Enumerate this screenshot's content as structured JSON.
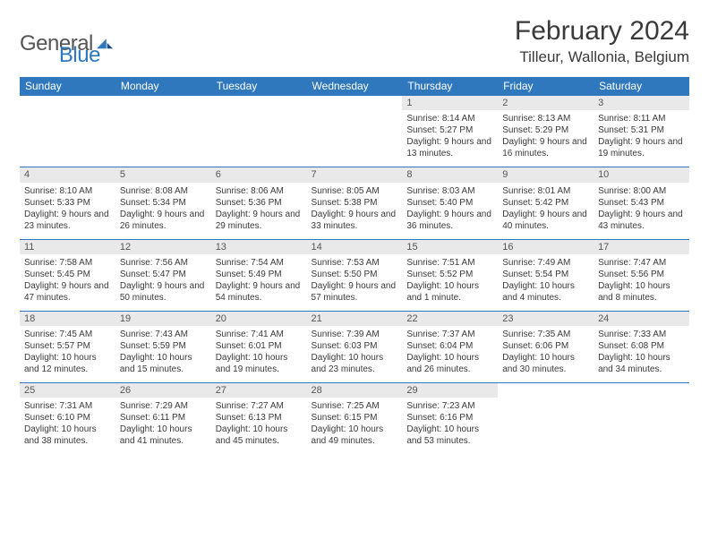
{
  "logo": {
    "text1": "General",
    "text2": "Blue"
  },
  "title": "February 2024",
  "location": "Tilleur, Wallonia, Belgium",
  "colors": {
    "header_bg": "#2f78bd",
    "header_text": "#ffffff",
    "daynum_bg": "#e9e9e9",
    "row_border": "#2f78bd",
    "text": "#3a3a3a",
    "page_bg": "#ffffff"
  },
  "typography": {
    "title_fontsize": 30,
    "location_fontsize": 17,
    "header_fontsize": 12,
    "daynum_fontsize": 11,
    "body_fontsize": 10
  },
  "weekdays": [
    "Sunday",
    "Monday",
    "Tuesday",
    "Wednesday",
    "Thursday",
    "Friday",
    "Saturday"
  ],
  "weeks": [
    [
      null,
      null,
      null,
      null,
      {
        "n": "1",
        "sr": "8:14 AM",
        "ss": "5:27 PM",
        "dl": "9 hours and 13 minutes."
      },
      {
        "n": "2",
        "sr": "8:13 AM",
        "ss": "5:29 PM",
        "dl": "9 hours and 16 minutes."
      },
      {
        "n": "3",
        "sr": "8:11 AM",
        "ss": "5:31 PM",
        "dl": "9 hours and 19 minutes."
      }
    ],
    [
      {
        "n": "4",
        "sr": "8:10 AM",
        "ss": "5:33 PM",
        "dl": "9 hours and 23 minutes."
      },
      {
        "n": "5",
        "sr": "8:08 AM",
        "ss": "5:34 PM",
        "dl": "9 hours and 26 minutes."
      },
      {
        "n": "6",
        "sr": "8:06 AM",
        "ss": "5:36 PM",
        "dl": "9 hours and 29 minutes."
      },
      {
        "n": "7",
        "sr": "8:05 AM",
        "ss": "5:38 PM",
        "dl": "9 hours and 33 minutes."
      },
      {
        "n": "8",
        "sr": "8:03 AM",
        "ss": "5:40 PM",
        "dl": "9 hours and 36 minutes."
      },
      {
        "n": "9",
        "sr": "8:01 AM",
        "ss": "5:42 PM",
        "dl": "9 hours and 40 minutes."
      },
      {
        "n": "10",
        "sr": "8:00 AM",
        "ss": "5:43 PM",
        "dl": "9 hours and 43 minutes."
      }
    ],
    [
      {
        "n": "11",
        "sr": "7:58 AM",
        "ss": "5:45 PM",
        "dl": "9 hours and 47 minutes."
      },
      {
        "n": "12",
        "sr": "7:56 AM",
        "ss": "5:47 PM",
        "dl": "9 hours and 50 minutes."
      },
      {
        "n": "13",
        "sr": "7:54 AM",
        "ss": "5:49 PM",
        "dl": "9 hours and 54 minutes."
      },
      {
        "n": "14",
        "sr": "7:53 AM",
        "ss": "5:50 PM",
        "dl": "9 hours and 57 minutes."
      },
      {
        "n": "15",
        "sr": "7:51 AM",
        "ss": "5:52 PM",
        "dl": "10 hours and 1 minute."
      },
      {
        "n": "16",
        "sr": "7:49 AM",
        "ss": "5:54 PM",
        "dl": "10 hours and 4 minutes."
      },
      {
        "n": "17",
        "sr": "7:47 AM",
        "ss": "5:56 PM",
        "dl": "10 hours and 8 minutes."
      }
    ],
    [
      {
        "n": "18",
        "sr": "7:45 AM",
        "ss": "5:57 PM",
        "dl": "10 hours and 12 minutes."
      },
      {
        "n": "19",
        "sr": "7:43 AM",
        "ss": "5:59 PM",
        "dl": "10 hours and 15 minutes."
      },
      {
        "n": "20",
        "sr": "7:41 AM",
        "ss": "6:01 PM",
        "dl": "10 hours and 19 minutes."
      },
      {
        "n": "21",
        "sr": "7:39 AM",
        "ss": "6:03 PM",
        "dl": "10 hours and 23 minutes."
      },
      {
        "n": "22",
        "sr": "7:37 AM",
        "ss": "6:04 PM",
        "dl": "10 hours and 26 minutes."
      },
      {
        "n": "23",
        "sr": "7:35 AM",
        "ss": "6:06 PM",
        "dl": "10 hours and 30 minutes."
      },
      {
        "n": "24",
        "sr": "7:33 AM",
        "ss": "6:08 PM",
        "dl": "10 hours and 34 minutes."
      }
    ],
    [
      {
        "n": "25",
        "sr": "7:31 AM",
        "ss": "6:10 PM",
        "dl": "10 hours and 38 minutes."
      },
      {
        "n": "26",
        "sr": "7:29 AM",
        "ss": "6:11 PM",
        "dl": "10 hours and 41 minutes."
      },
      {
        "n": "27",
        "sr": "7:27 AM",
        "ss": "6:13 PM",
        "dl": "10 hours and 45 minutes."
      },
      {
        "n": "28",
        "sr": "7:25 AM",
        "ss": "6:15 PM",
        "dl": "10 hours and 49 minutes."
      },
      {
        "n": "29",
        "sr": "7:23 AM",
        "ss": "6:16 PM",
        "dl": "10 hours and 53 minutes."
      },
      null,
      null
    ]
  ],
  "labels": {
    "sunrise": "Sunrise: ",
    "sunset": "Sunset: ",
    "daylight": "Daylight: "
  }
}
